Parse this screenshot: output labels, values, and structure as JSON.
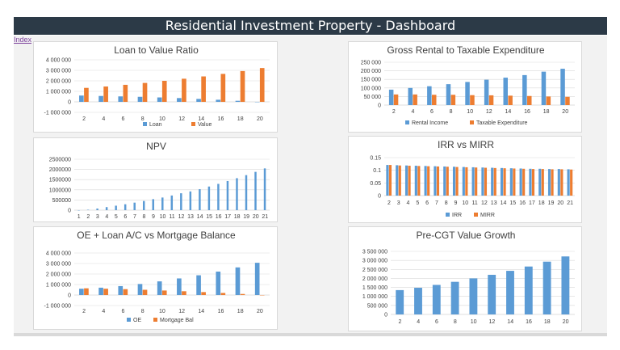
{
  "header": {
    "title": "Residential Investment Property - Dashboard",
    "link_label": "Index"
  },
  "colors": {
    "blue": "#5b9bd5",
    "orange": "#ed7d31",
    "grid": "#d9d9d9",
    "axis": "#bfbfbf"
  },
  "chart_data": [
    {
      "id": "ltv",
      "type": "bar",
      "title": "Loan to Value Ratio",
      "categories": [
        "2",
        "4",
        "6",
        "8",
        "10",
        "12",
        "14",
        "16",
        "18",
        "20"
      ],
      "series": [
        {
          "name": "Loan",
          "values": [
            600000,
            560000,
            520000,
            480000,
            420000,
            360000,
            280000,
            200000,
            100000,
            0
          ]
        },
        {
          "name": "Value",
          "values": [
            1330000,
            1460000,
            1620000,
            1800000,
            2000000,
            2200000,
            2420000,
            2660000,
            2930000,
            3220000
          ]
        }
      ],
      "ylim": [
        -1000000,
        4000000
      ],
      "yticks": [
        -1000000,
        0,
        1000000,
        2000000,
        3000000,
        4000000
      ],
      "ytick_labels": [
        "-1 000 000",
        "0",
        "1 000 000",
        "2 000 000",
        "3 000 000",
        "4 000 000"
      ],
      "grid": true,
      "legend": "bottom"
    },
    {
      "id": "rental",
      "type": "bar",
      "title": "Gross Rental to Taxable Expenditure",
      "categories": [
        "2",
        "4",
        "6",
        "8",
        "10",
        "12",
        "14",
        "16",
        "18",
        "20"
      ],
      "series": [
        {
          "name": "Rental Income",
          "values": [
            90000,
            100000,
            110000,
            122000,
            135000,
            148000,
            160000,
            175000,
            195000,
            212000
          ]
        },
        {
          "name": "Taxable Expenditure",
          "values": [
            62000,
            62000,
            60000,
            60000,
            58000,
            57000,
            55000,
            53000,
            50000,
            48000
          ]
        }
      ],
      "ylim": [
        0,
        250000
      ],
      "yticks": [
        0,
        50000,
        100000,
        150000,
        200000,
        250000
      ],
      "ytick_labels": [
        "0",
        "50 000",
        "100 000",
        "150 000",
        "200 000",
        "250 000"
      ],
      "grid": true,
      "legend": "bottom"
    },
    {
      "id": "npv",
      "type": "bar",
      "title": "NPV",
      "categories": [
        "1",
        "2",
        "3",
        "4",
        "5",
        "6",
        "7",
        "8",
        "9",
        "10",
        "11",
        "12",
        "13",
        "14",
        "15",
        "16",
        "17",
        "18",
        "19",
        "20",
        "21"
      ],
      "series": [
        {
          "name": "",
          "values": [
            0,
            20000,
            80000,
            150000,
            220000,
            290000,
            370000,
            450000,
            540000,
            620000,
            720000,
            830000,
            920000,
            1030000,
            1160000,
            1290000,
            1430000,
            1570000,
            1720000,
            1880000,
            2050000
          ]
        }
      ],
      "ylim": [
        0,
        2500000
      ],
      "yticks": [
        0,
        500000,
        1000000,
        1500000,
        2000000,
        2500000
      ],
      "ytick_labels": [
        "0",
        "500000",
        "1000000",
        "1500000",
        "2000000",
        "2500000"
      ],
      "grid": true,
      "legend": "none"
    },
    {
      "id": "irr",
      "type": "bar",
      "title": "IRR vs MIRR",
      "categories": [
        "2",
        "3",
        "4",
        "5",
        "6",
        "7",
        "8",
        "9",
        "10",
        "11",
        "12",
        "13",
        "14",
        "15",
        "16",
        "17",
        "18",
        "19",
        "20",
        "21"
      ],
      "series": [
        {
          "name": "IRR",
          "values": [
            0.121,
            0.12,
            0.119,
            0.118,
            0.117,
            0.116,
            0.115,
            0.114,
            0.113,
            0.112,
            0.111,
            0.11,
            0.109,
            0.108,
            0.107,
            0.106,
            0.106,
            0.105,
            0.105,
            0.104
          ]
        },
        {
          "name": "MIRR",
          "values": [
            0.121,
            0.119,
            0.118,
            0.117,
            0.116,
            0.115,
            0.114,
            0.113,
            0.112,
            0.111,
            0.11,
            0.109,
            0.108,
            0.107,
            0.106,
            0.105,
            0.105,
            0.104,
            0.104,
            0.103
          ]
        }
      ],
      "ylim": [
        0,
        0.15
      ],
      "yticks": [
        0,
        0.05,
        0.1,
        0.15
      ],
      "ytick_labels": [
        "0",
        "0.05",
        "0.1",
        "0.15"
      ],
      "grid": true,
      "legend": "bottom"
    },
    {
      "id": "oe",
      "type": "bar",
      "title": "OE + Loan A/C vs Mortgage Balance",
      "categories": [
        "2",
        "4",
        "6",
        "8",
        "10",
        "12",
        "14",
        "16",
        "18",
        "20"
      ],
      "series": [
        {
          "name": "OE",
          "values": [
            600000,
            700000,
            850000,
            1050000,
            1300000,
            1580000,
            1880000,
            2230000,
            2630000,
            3070000
          ]
        },
        {
          "name": "Mortgage Bal",
          "values": [
            640000,
            600000,
            560000,
            500000,
            430000,
            360000,
            280000,
            200000,
            100000,
            0
          ]
        }
      ],
      "ylim": [
        -1000000,
        4000000
      ],
      "yticks": [
        -1000000,
        0,
        1000000,
        2000000,
        3000000,
        4000000
      ],
      "ytick_labels": [
        "-1 000 000",
        "0",
        "1 000 000",
        "2 000 000",
        "3 000 000",
        "4 000 000"
      ],
      "grid": true,
      "legend": "bottom"
    },
    {
      "id": "cgt",
      "type": "bar",
      "title": "Pre-CGT Value Growth",
      "categories": [
        "2",
        "4",
        "6",
        "8",
        "10",
        "12",
        "14",
        "16",
        "18",
        "20"
      ],
      "series": [
        {
          "name": "",
          "values": [
            1350000,
            1480000,
            1640000,
            1810000,
            2000000,
            2200000,
            2420000,
            2660000,
            2930000,
            3220000
          ]
        }
      ],
      "ylim": [
        0,
        3500000
      ],
      "yticks": [
        0,
        500000,
        1000000,
        1500000,
        2000000,
        2500000,
        3000000,
        3500000
      ],
      "ytick_labels": [
        "0",
        "500 000",
        "1 000 000",
        "1 500 000",
        "2 000 000",
        "2 500 000",
        "3 000 000",
        "3 500 000"
      ],
      "grid": true,
      "legend": "none"
    }
  ]
}
